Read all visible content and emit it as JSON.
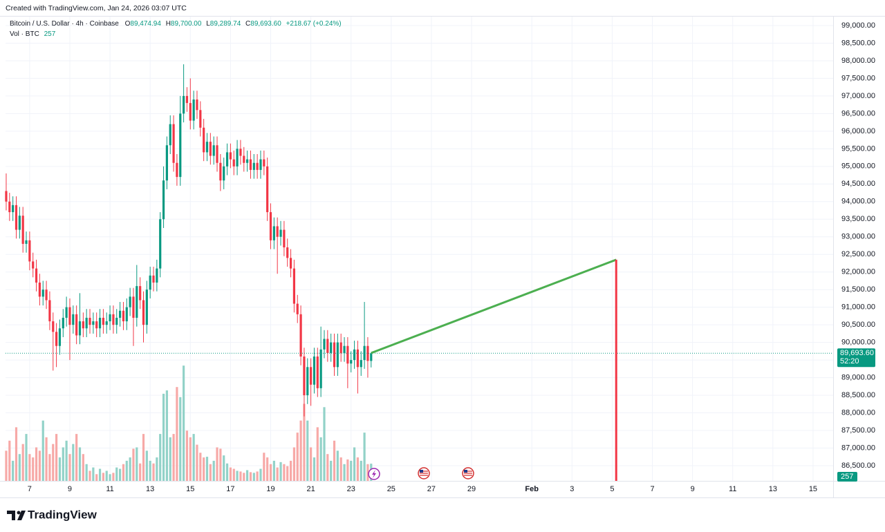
{
  "chart_data": {
    "type": "candlestick",
    "attribution": "Created with TradingView.com, Jan 24, 2026 03:07 UTC",
    "symbol": "Bitcoin / U.S. Dollar · 4h · Coinbase",
    "legend_values": {
      "o_label": "O",
      "open": "89,474.94",
      "h_label": "H",
      "high": "89,700.00",
      "l_label": "L",
      "low": "89,289.74",
      "c_label": "C",
      "close": "89,693.60",
      "change": "+218.67 (+0.24%)"
    },
    "volume_label": "Vol · BTC",
    "volume_value_label": "257",
    "last_price_label": "89,693.60",
    "countdown": "52:20",
    "volume_tag": "257",
    "logo": "TradingView",
    "up_color": "#089981",
    "down_color": "#f23645",
    "up_volume_color": "#92d2c8",
    "down_volume_color": "#f7a9a7",
    "grid": true,
    "xlim": [
      5.8,
      47.0
    ],
    "ylim": [
      86068,
      99255
    ],
    "xticks": [
      7,
      9,
      11,
      13,
      15,
      17,
      19,
      21,
      23,
      25,
      27,
      29,
      {
        "value": 32,
        "label": "Feb"
      },
      {
        "value": 34,
        "label": "3"
      },
      {
        "value": 36,
        "label": "5"
      },
      {
        "value": 38,
        "label": "7"
      },
      {
        "value": 40,
        "label": "9"
      },
      {
        "value": 42,
        "label": "11"
      },
      {
        "value": 44,
        "label": "13"
      },
      {
        "value": 46,
        "label": "15"
      }
    ],
    "yticks": [
      {
        "value": 86500,
        "label": "86,500.00"
      },
      {
        "value": 87000,
        "label": "87,000.00"
      },
      {
        "value": 87500,
        "label": "87,500.00"
      },
      {
        "value": 88000,
        "label": "88,000.00"
      },
      {
        "value": 88500,
        "label": "88,500.00"
      },
      {
        "value": 89000,
        "label": "89,000.00"
      },
      {
        "value": 89500,
        "label": "89,500.00"
      },
      {
        "value": 90000,
        "label": "90,000.00"
      },
      {
        "value": 90500,
        "label": "90,500.00"
      },
      {
        "value": 91000,
        "label": "91,000.00"
      },
      {
        "value": 91500,
        "label": "91,500.00"
      },
      {
        "value": 92000,
        "label": "92,000.00"
      },
      {
        "value": 92500,
        "label": "92,500.00"
      },
      {
        "value": 93000,
        "label": "93,000.00"
      },
      {
        "value": 93500,
        "label": "93,500.00"
      },
      {
        "value": 94000,
        "label": "94,000.00"
      },
      {
        "value": 94500,
        "label": "94,500.00"
      },
      {
        "value": 95000,
        "label": "95,000.00"
      },
      {
        "value": 95500,
        "label": "95,500.00"
      },
      {
        "value": 96000,
        "label": "96,000.00"
      },
      {
        "value": 96500,
        "label": "96,500.00"
      },
      {
        "value": 97000,
        "label": "97,000.00"
      },
      {
        "value": 97500,
        "label": "97,500.00"
      },
      {
        "value": 98000,
        "label": "98,000.00"
      },
      {
        "value": 98500,
        "label": "98,500.00"
      },
      {
        "value": 99000,
        "label": "99,000.00"
      }
    ],
    "x": [
      5.833,
      6,
      6.167,
      6.333,
      6.5,
      6.667,
      6.833,
      7,
      7.167,
      7.333,
      7.5,
      7.667,
      7.833,
      8,
      8.167,
      8.333,
      8.5,
      8.667,
      8.833,
      9,
      9.167,
      9.333,
      9.5,
      9.667,
      9.833,
      10,
      10.167,
      10.333,
      10.5,
      10.667,
      10.833,
      11,
      11.167,
      11.333,
      11.5,
      11.667,
      11.833,
      12,
      12.167,
      12.333,
      12.5,
      12.667,
      12.833,
      13,
      13.167,
      13.333,
      13.5,
      13.667,
      13.833,
      14,
      14.167,
      14.333,
      14.5,
      14.667,
      14.833,
      15,
      15.167,
      15.333,
      15.5,
      15.667,
      15.833,
      16,
      16.167,
      16.333,
      16.5,
      16.667,
      16.833,
      17,
      17.167,
      17.333,
      17.5,
      17.667,
      17.833,
      18,
      18.167,
      18.333,
      18.5,
      18.667,
      18.833,
      19,
      19.167,
      19.333,
      19.5,
      19.667,
      19.833,
      20,
      20.167,
      20.333,
      20.5,
      20.667,
      20.833,
      21,
      21.167,
      21.333,
      21.5,
      21.667,
      21.833,
      22,
      22.167,
      22.333,
      22.5,
      22.667,
      22.833,
      23,
      23.167,
      23.333,
      23.5,
      23.667,
      23.833,
      24
    ],
    "open": [
      94300,
      94000,
      93700,
      93900,
      93200,
      93600,
      92800,
      92900,
      92300,
      92100,
      91700,
      91300,
      91500,
      91200,
      90600,
      90300,
      89900,
      90400,
      90700,
      91000,
      90500,
      90800,
      90200,
      90600,
      90400,
      90700,
      90500,
      90600,
      90400,
      90700,
      90500,
      90600,
      90800,
      90500,
      90700,
      90900,
      90600,
      91000,
      91300,
      90700,
      91600,
      91200,
      90500,
      91500,
      91900,
      91700,
      92100,
      93500,
      94600,
      95600,
      96200,
      95100,
      94700,
      96500,
      97000,
      96800,
      96300,
      96900,
      96600,
      96100,
      95400,
      95700,
      95300,
      95600,
      95100,
      94600,
      95000,
      95400,
      95200,
      95000,
      95500,
      95300,
      95100,
      95200,
      94900,
      95100,
      94900,
      95200,
      95000,
      93700,
      92900,
      93300,
      93000,
      93200,
      92700,
      92400,
      92100,
      91100,
      90800,
      89600,
      88500,
      89300,
      88800,
      89600,
      88700,
      89800,
      90100,
      89700,
      90000,
      89300,
      90000,
      89700,
      89900,
      89400,
      89500,
      89800,
      89300,
      89500,
      89900,
      89474.94
    ],
    "high": [
      94800,
      94250,
      94150,
      94150,
      93850,
      93850,
      93150,
      93150,
      92550,
      92350,
      91950,
      91750,
      91750,
      91450,
      90850,
      90550,
      90650,
      90950,
      91300,
      91250,
      91050,
      91050,
      91400,
      90850,
      90950,
      90950,
      90850,
      90850,
      90950,
      90950,
      90850,
      91050,
      91050,
      90950,
      91150,
      91150,
      91250,
      91550,
      91550,
      92200,
      91850,
      91450,
      91750,
      92150,
      92150,
      92350,
      93700,
      95000,
      95850,
      96450,
      96450,
      95350,
      97000,
      97900,
      97250,
      97500,
      97150,
      97150,
      96850,
      96350,
      95950,
      95950,
      95850,
      95850,
      95350,
      95250,
      95650,
      95650,
      95450,
      95750,
      95750,
      95550,
      95450,
      95450,
      95350,
      95350,
      95450,
      95450,
      95250,
      93950,
      93550,
      93550,
      93450,
      93450,
      92950,
      92650,
      92350,
      91350,
      91050,
      89850,
      89550,
      89550,
      89850,
      89850,
      90450,
      90350,
      90350,
      90250,
      90250,
      90250,
      90250,
      90150,
      90150,
      89750,
      90050,
      90050,
      89750,
      91150,
      90150,
      89700
    ],
    "low": [
      93750,
      93450,
      93450,
      92950,
      92950,
      92550,
      92550,
      92050,
      91850,
      91450,
      91050,
      91050,
      90950,
      90350,
      89200,
      89300,
      89650,
      90150,
      90450,
      89500,
      90250,
      89950,
      89950,
      90150,
      90150,
      90250,
      90250,
      90150,
      90150,
      90250,
      90250,
      90350,
      90250,
      90250,
      90450,
      90350,
      90350,
      90750,
      89900,
      90450,
      90950,
      90000,
      90250,
      91250,
      91450,
      91450,
      91850,
      93250,
      94350,
      95350,
      94850,
      94450,
      94450,
      96250,
      96550,
      96050,
      96050,
      96350,
      95850,
      95150,
      95150,
      95050,
      95050,
      94850,
      94300,
      94350,
      94750,
      94950,
      94750,
      94750,
      95050,
      94850,
      94850,
      94650,
      94650,
      94650,
      94650,
      94750,
      93450,
      92650,
      92650,
      91950,
      92750,
      92450,
      92150,
      91850,
      90850,
      90550,
      89350,
      87900,
      88250,
      88200,
      88550,
      88450,
      88450,
      89550,
      89450,
      89450,
      89050,
      89050,
      89450,
      89450,
      88700,
      89150,
      89250,
      88550,
      89050,
      89250,
      89000,
      89289.74
    ],
    "close": [
      94000,
      93700,
      93900,
      93200,
      93600,
      92800,
      92900,
      92300,
      92100,
      91700,
      91300,
      91500,
      91200,
      90600,
      90300,
      89900,
      90400,
      90700,
      91000,
      90500,
      90800,
      90200,
      90600,
      90400,
      90700,
      90500,
      90600,
      90400,
      90700,
      90500,
      90600,
      90800,
      90500,
      90700,
      90900,
      90600,
      91000,
      91300,
      90700,
      91600,
      91200,
      90500,
      91500,
      91900,
      91700,
      92100,
      93500,
      94600,
      95600,
      96200,
      95100,
      94700,
      96500,
      97000,
      96800,
      96300,
      96900,
      96600,
      96100,
      95400,
      95700,
      95300,
      95600,
      95100,
      94600,
      95000,
      95400,
      95200,
      95000,
      95500,
      95300,
      95100,
      95200,
      94900,
      95100,
      94900,
      95200,
      95000,
      93700,
      92900,
      93300,
      93000,
      93200,
      92700,
      92400,
      92100,
      91100,
      90800,
      89600,
      88500,
      89300,
      88800,
      89600,
      88700,
      89800,
      90100,
      89700,
      90000,
      89300,
      90000,
      89700,
      89900,
      89400,
      89500,
      89800,
      89300,
      89500,
      89900,
      89474.94,
      89693.6
    ],
    "volume": [
      450,
      600,
      300,
      800,
      400,
      550,
      700,
      400,
      350,
      500,
      450,
      900,
      650,
      400,
      550,
      700,
      350,
      500,
      600,
      400,
      550,
      700,
      500,
      400,
      250,
      150,
      200,
      100,
      180,
      120,
      150,
      100,
      120,
      200,
      180,
      250,
      300,
      350,
      480,
      500,
      260,
      700,
      450,
      300,
      260,
      350,
      700,
      1300,
      1350,
      650,
      700,
      1400,
      1250,
      1720,
      750,
      650,
      700,
      540,
      420,
      350,
      360,
      250,
      300,
      500,
      480,
      380,
      260,
      200,
      180,
      150,
      140,
      120,
      160,
      130,
      120,
      140,
      180,
      420,
      350,
      250,
      300,
      200,
      280,
      250,
      220,
      300,
      500,
      720,
      900,
      1150,
      900,
      500,
      350,
      800,
      650,
      1100,
      400,
      300,
      600,
      450,
      350,
      250,
      320,
      300,
      500,
      350,
      300,
      720,
      250,
      257
    ],
    "drawings": {
      "trend_color": "#4caf50",
      "trend_x": [
        24.0,
        36.2
      ],
      "trend_y": [
        89700,
        92350
      ],
      "vline_color": "#f23645",
      "vline_x": 36.2
    }
  }
}
